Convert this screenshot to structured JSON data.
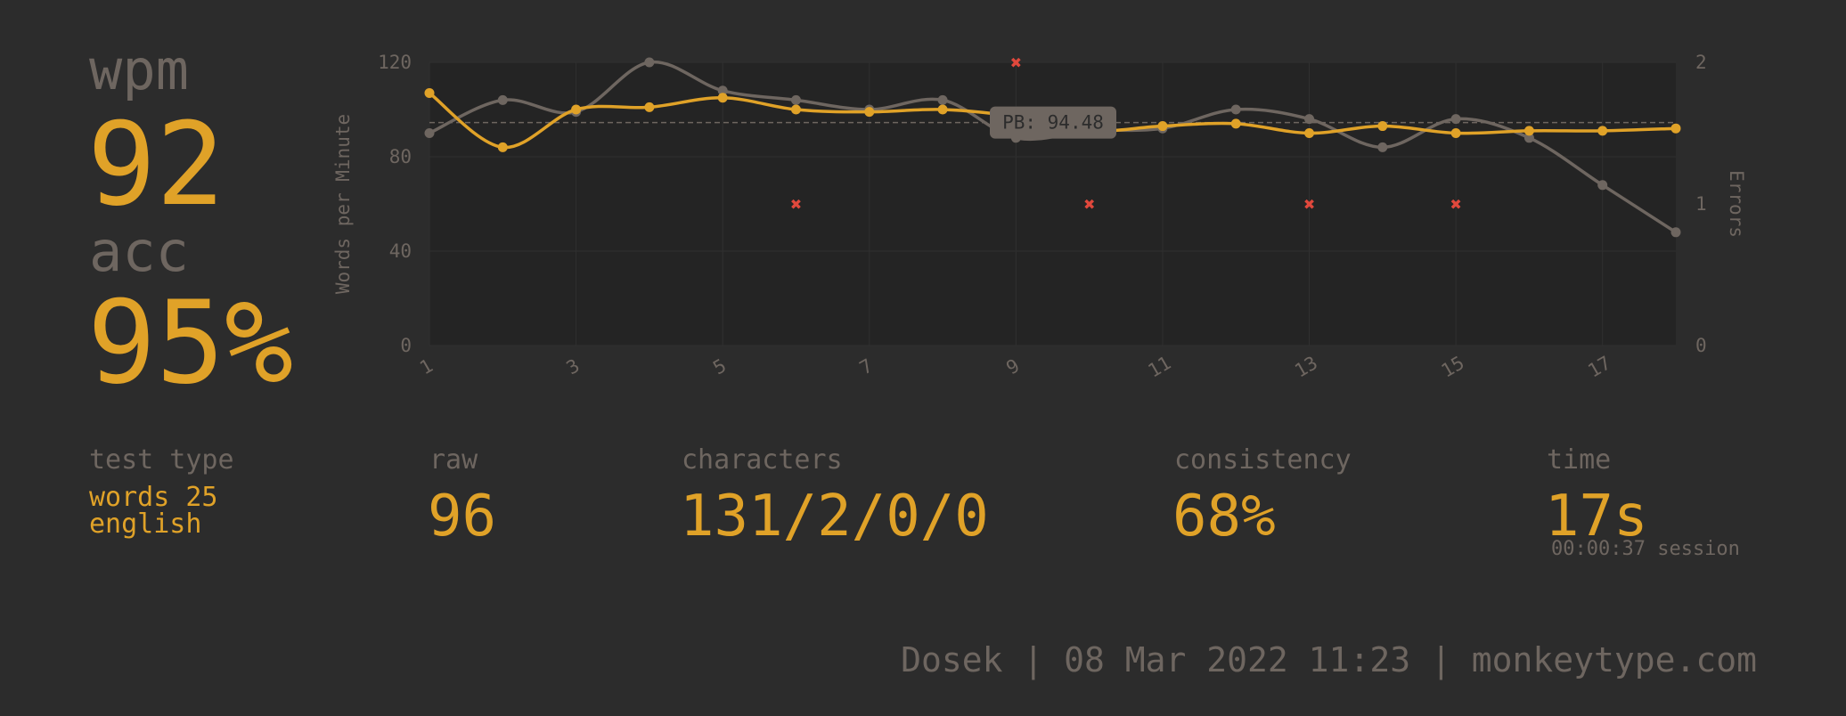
{
  "stats": {
    "wpm_label": "wpm",
    "wpm_value": "92",
    "acc_label": "acc",
    "acc_value": "95%",
    "test_type_label": "test type",
    "test_type_line1": "words 25",
    "test_type_line2": "english",
    "raw_label": "raw",
    "raw_value": "96",
    "characters_label": "characters",
    "characters_value": "131/2/0/0",
    "consistency_label": "consistency",
    "consistency_value": "68%",
    "time_label": "time",
    "time_value": "17s",
    "session_text": "00:00:37 session"
  },
  "footer": {
    "text": "Dosek | 08 Mar 2022 11:23 | monkeytype.com"
  },
  "colors": {
    "background": "#2c2c2c",
    "plot_bg": "#242424",
    "main": "#e0a228",
    "sub": "#6e6660",
    "error": "#e0483c"
  },
  "chart_data": {
    "type": "line",
    "x": [
      1,
      2,
      3,
      4,
      5,
      6,
      7,
      8,
      9,
      10,
      11,
      12,
      13,
      14,
      15,
      16,
      17,
      18
    ],
    "x_tick_labels": [
      "1",
      "3",
      "5",
      "7",
      "9",
      "11",
      "13",
      "15",
      "17"
    ],
    "y_ticks": [
      "0",
      "40",
      "80",
      "120"
    ],
    "y2_ticks": [
      "0",
      "1",
      "2"
    ],
    "ylabel": "Words per Minute",
    "y2label": "Errors",
    "ylim": [
      0,
      120
    ],
    "y2lim": [
      0,
      2
    ],
    "series": [
      {
        "role": "wpm",
        "color": "#e0a228",
        "values": [
          107,
          84,
          100,
          101,
          105,
          100,
          99,
          100,
          97,
          91,
          93,
          94,
          90,
          93,
          90,
          91,
          91,
          92
        ]
      },
      {
        "role": "raw",
        "color": "#6e6660",
        "values": [
          90,
          104,
          99,
          120,
          108,
          104,
          100,
          104,
          88,
          91,
          92,
          100,
          96,
          84,
          96,
          88,
          68,
          48
        ]
      }
    ],
    "errors": [
      {
        "x": 6,
        "y": 1
      },
      {
        "x": 9,
        "y": 2
      },
      {
        "x": 10,
        "y": 1
      },
      {
        "x": 13,
        "y": 1
      },
      {
        "x": 15,
        "y": 1
      }
    ],
    "pb": {
      "value": 94.48,
      "label": "PB: 94.48"
    },
    "grid": true,
    "legend": "none"
  }
}
